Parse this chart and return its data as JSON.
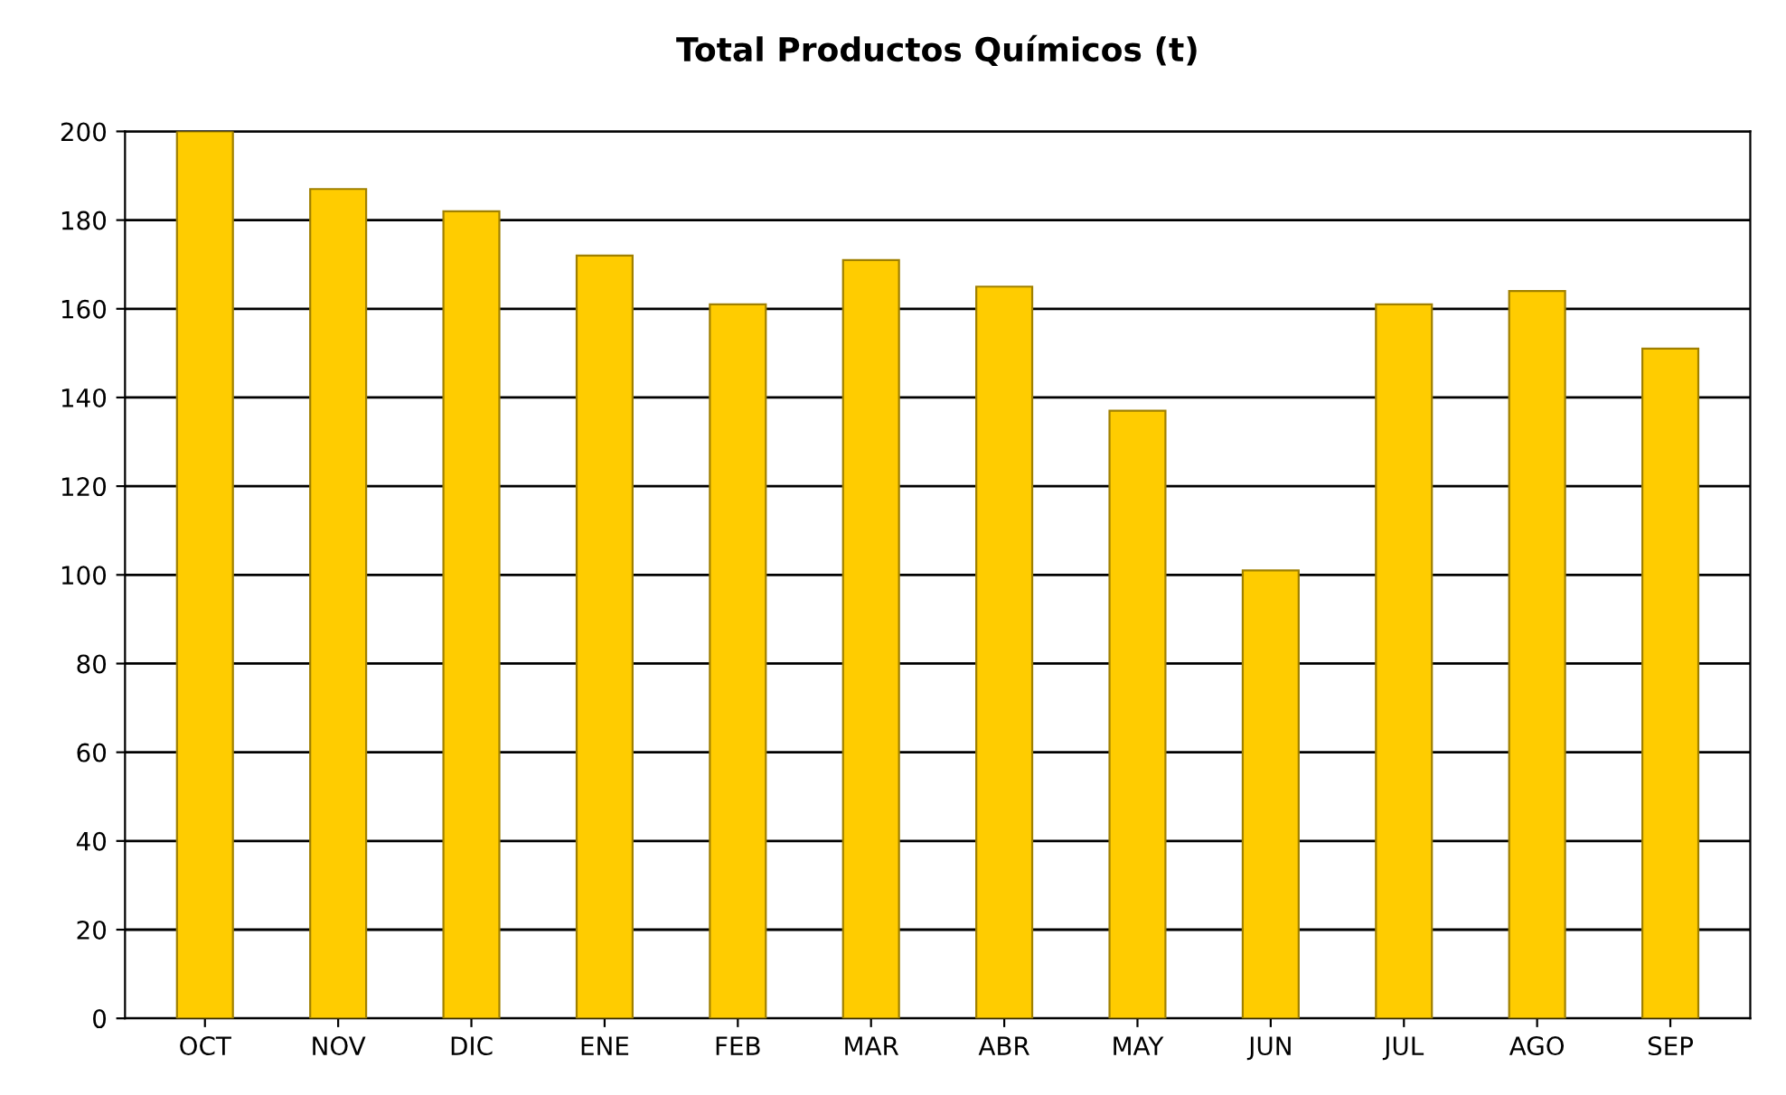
{
  "chart_data": {
    "type": "bar",
    "title": "Total Productos Químicos (t)",
    "categories": [
      "OCT",
      "NOV",
      "DIC",
      "ENE",
      "FEB",
      "MAR",
      "ABR",
      "MAY",
      "JUN",
      "JUL",
      "AGO",
      "SEP"
    ],
    "values": [
      200,
      187,
      182,
      172,
      161,
      171,
      165,
      137,
      101,
      161,
      164,
      151
    ],
    "color": "#ffcc00",
    "ylim": [
      0,
      200
    ],
    "yticks": [
      0,
      20,
      40,
      60,
      80,
      100,
      120,
      140,
      160,
      180,
      200
    ],
    "grid": "y",
    "legend": false
  }
}
